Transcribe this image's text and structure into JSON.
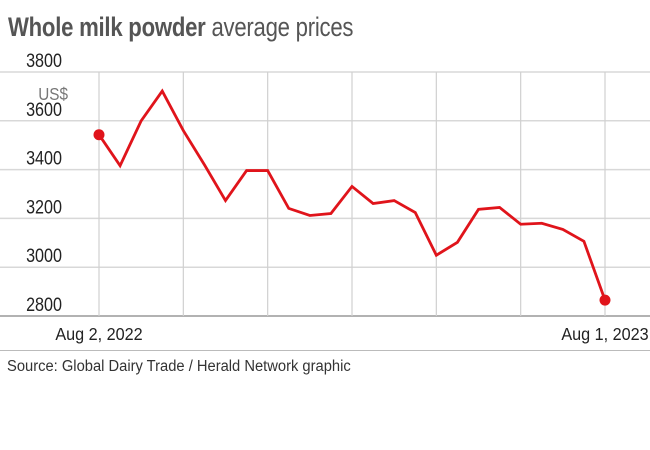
{
  "title_bold": "Whole milk powder",
  "title_rest": " average prices",
  "source": "Source: Global Dairy Trade / Herald Network graphic",
  "chart_data": {
    "type": "line",
    "title": "Whole milk powder average prices",
    "ylabel": "US$",
    "ylim": [
      2800,
      3800
    ],
    "yticks": [
      3800,
      3600,
      3400,
      3200,
      3000,
      2800
    ],
    "x_labels": [
      "Aug 2, 2022",
      "Aug 1, 2023"
    ],
    "grid": true,
    "color": "#e0141b",
    "series": [
      {
        "name": "Average price",
        "values": [
          3543,
          3416,
          3600,
          3722,
          3560,
          3420,
          3273,
          3396,
          3396,
          3241,
          3212,
          3220,
          3331,
          3261,
          3273,
          3224,
          3049,
          3102,
          3237,
          3245,
          3176,
          3180,
          3155,
          3106,
          2865
        ]
      }
    ]
  }
}
